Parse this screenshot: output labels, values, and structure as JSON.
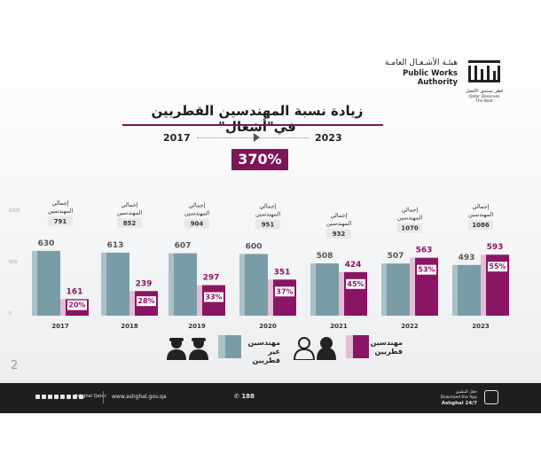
{
  "header": {
    "org_ar": "هيئـة الأشـغـال العامـة",
    "org_en": "Public Works Authority",
    "logo_mark_ar": "أشغال",
    "tagline_ar": "قطر تستحق الأفضل",
    "tagline_en": "Qatar Deserves The Best"
  },
  "title": "زيادة نسبة المهندسين القطريين في\"أشغال\"",
  "comparison": {
    "from_year": "2017",
    "to_year": "2023",
    "growth": "370%"
  },
  "chart_data": {
    "type": "bar",
    "categories": [
      "2017",
      "2018",
      "2019",
      "2020",
      "2021",
      "2022",
      "2023"
    ],
    "total_label": "إجمالي المهندسين",
    "totals": [
      791,
      852,
      904,
      951,
      932,
      1070,
      1086
    ],
    "series": [
      {
        "name": "مهندسين غير قطريين",
        "values": [
          630,
          613,
          607,
          600,
          508,
          507,
          493
        ],
        "color": "#7a9ca6",
        "side": "#a9c1c8"
      },
      {
        "name": "مهندسين قطريين",
        "values": [
          161,
          239,
          297,
          351,
          424,
          563,
          593
        ],
        "color": "#8b1565",
        "side": "#e8bcd5"
      }
    ],
    "percentages": [
      "20%",
      "28%",
      "33%",
      "37%",
      "45%",
      "53%",
      "55%"
    ],
    "y_ticks": [
      0,
      500,
      1000
    ],
    "ylim": [
      0,
      1000
    ]
  },
  "legend": {
    "non_qatari": "مهندسين غير قطريين",
    "qatari": "مهندسين قطريين"
  },
  "footer": {
    "social_handle": "Ashghal Qatar",
    "website": "www.ashghal.gov.qa",
    "phone": "188",
    "app_ar": "حمّل التطبيق",
    "app_en1": "Download the App",
    "app_en2": "Ashghal 24/7"
  },
  "page_number": "2"
}
